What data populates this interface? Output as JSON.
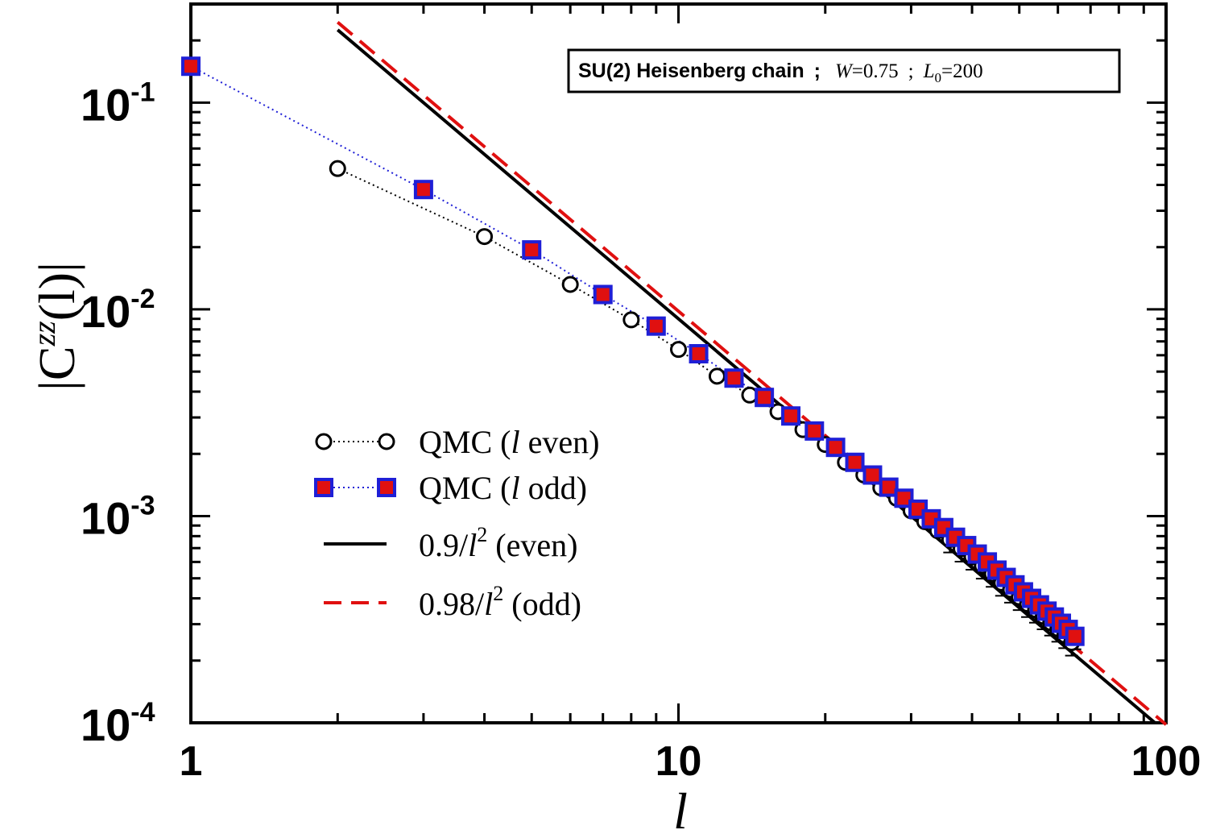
{
  "chart_data": {
    "type": "scatter",
    "x_scale": "log",
    "y_scale": "log",
    "xlim": [
      1,
      100
    ],
    "ylim": [
      0.0001,
      0.3
    ],
    "x_ticks": [
      {
        "value": 1,
        "label": "1"
      },
      {
        "value": 10,
        "label": "10"
      },
      {
        "value": 100,
        "label": "100"
      }
    ],
    "y_ticks": [
      {
        "value": 0.1,
        "base": "10",
        "exp": "-1"
      },
      {
        "value": 0.01,
        "base": "10",
        "exp": "-2"
      },
      {
        "value": 0.001,
        "base": "10",
        "exp": "-3"
      },
      {
        "value": 0.0001,
        "base": "10",
        "exp": "-4"
      }
    ],
    "xlabel": "l",
    "ylabel": {
      "pre": "|C",
      "sup": "zz",
      "post": "(l)|"
    },
    "annotation": {
      "model": "SU(2) Heisenberg chain",
      "sep": ";",
      "w_name": "W",
      "w_value": "=0.75",
      "l_name": "L",
      "l_sub": "0",
      "l_value": "=200"
    },
    "legend": {
      "placement": "center-left",
      "entries": [
        {
          "pre": "QMC (",
          "it": "l",
          "post": " even)"
        },
        {
          "pre": "QMC (",
          "it": "l",
          "post": " odd)"
        },
        {
          "pre": "0.9/",
          "it": "l",
          "sup": "2",
          "post": " (even)"
        },
        {
          "pre": "0.98/",
          "it": "l",
          "sup": "2",
          "post": " (odd)"
        }
      ]
    },
    "grid": false,
    "series": [
      {
        "marker": "open-circle",
        "line": "dotted",
        "color": "#000000",
        "fill": "#ffffff",
        "x": [
          2,
          4,
          6,
          8,
          10,
          12,
          14,
          16,
          18,
          20,
          22,
          24,
          26,
          28,
          30,
          32,
          34,
          36,
          38,
          40,
          42,
          44,
          46,
          48,
          50,
          52,
          54,
          56,
          58,
          60,
          62,
          64
        ],
        "y": [
          0.048,
          0.0225,
          0.0132,
          0.0089,
          0.0064,
          0.00475,
          0.00385,
          0.0032,
          0.00262,
          0.00222,
          0.00182,
          0.00158,
          0.00137,
          0.00122,
          0.00106,
          0.00094,
          0.00085,
          0.00077,
          0.000695,
          0.000635,
          0.000575,
          0.000525,
          0.000475,
          0.00044,
          0.000405,
          0.000375,
          0.000352,
          0.000327,
          0.000305,
          0.000285,
          0.000265,
          0.000244
        ]
      },
      {
        "marker": "square",
        "line": "dotted",
        "color": "#1f1fd6",
        "fill": "#e01010",
        "x": [
          1,
          3,
          5,
          7,
          9,
          11,
          13,
          15,
          17,
          19,
          21,
          23,
          25,
          27,
          29,
          31,
          33,
          35,
          37,
          39,
          41,
          43,
          45,
          47,
          49,
          51,
          53,
          55,
          57,
          59,
          61,
          63,
          65
        ],
        "y": [
          0.15,
          0.038,
          0.0194,
          0.0118,
          0.0083,
          0.0061,
          0.00465,
          0.00375,
          0.00305,
          0.00258,
          0.00215,
          0.00182,
          0.00158,
          0.00138,
          0.00122,
          0.00108,
          0.00097,
          0.00088,
          0.00079,
          0.00072,
          0.000655,
          0.0006,
          0.000548,
          0.000505,
          0.000465,
          0.00043,
          0.0004,
          0.000372,
          0.000347,
          0.000325,
          0.000303,
          0.000283,
          0.000262
        ]
      },
      {
        "kind": "line",
        "coef": 0.9,
        "power": -2,
        "x_range": [
          2,
          95
        ],
        "color": "#000000",
        "dash": "solid"
      },
      {
        "kind": "line",
        "coef": 0.98,
        "power": -2,
        "x_range": [
          2,
          100
        ],
        "color": "#e01010",
        "dash": "dashed"
      }
    ]
  }
}
